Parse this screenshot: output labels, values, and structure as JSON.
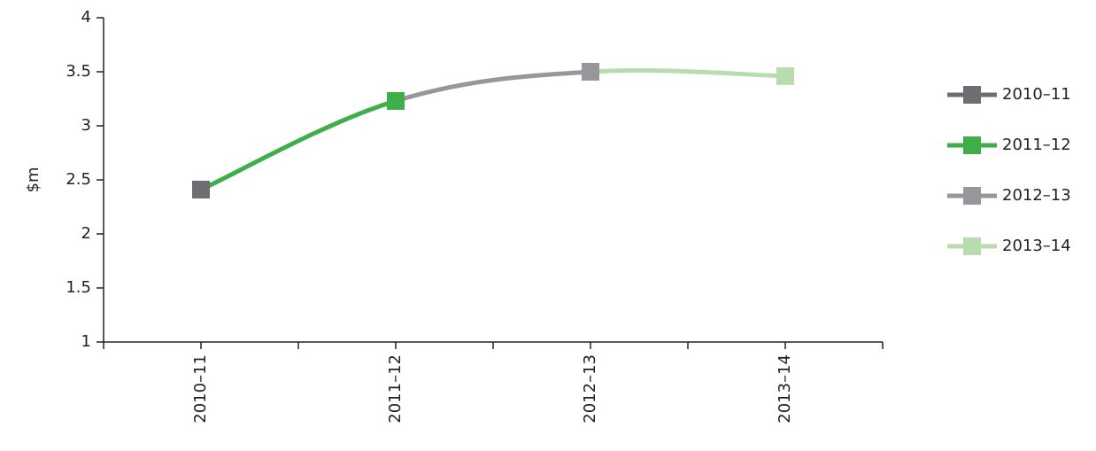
{
  "chart_data": {
    "type": "line",
    "title": "",
    "xlabel": "",
    "ylabel": "$m",
    "categories": [
      "2010–11",
      "2011–12",
      "2012–13",
      "2013–14"
    ],
    "values": [
      2.41,
      3.23,
      3.5,
      3.46
    ],
    "ylim": [
      1,
      4
    ],
    "yticks": [
      1,
      1.5,
      2,
      2.5,
      3,
      3.5,
      4
    ],
    "ytick_labels": [
      "1",
      "1.5",
      "2",
      "2.5",
      "3",
      "3.5",
      "4"
    ],
    "grid": false,
    "legend_position": "right",
    "legend": [
      "2010–11",
      "2011–12",
      "2012–13",
      "2013–14"
    ],
    "point_colors": [
      "#6d6e71",
      "#3fae49",
      "#96979a",
      "#b9dcae"
    ]
  }
}
